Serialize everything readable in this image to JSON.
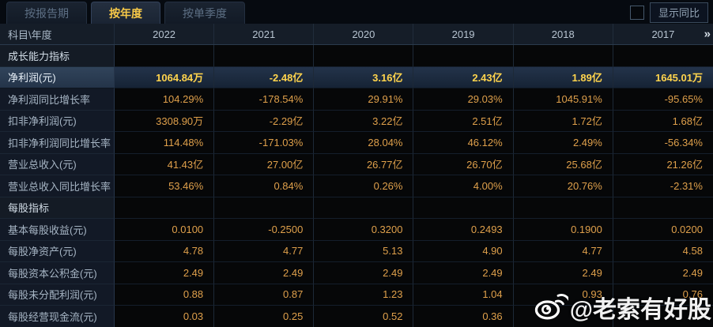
{
  "tabs": [
    {
      "label": "按报告期",
      "active": false
    },
    {
      "label": "按年度",
      "active": true
    },
    {
      "label": "按单季度",
      "active": false
    }
  ],
  "controls": {
    "show_yoy_label": "显示同比",
    "checkbox_checked": false
  },
  "table": {
    "corner_header": "科目\\年度",
    "years": [
      "2022",
      "2021",
      "2020",
      "2019",
      "2018",
      "2017"
    ],
    "more_icon": "»",
    "rows": [
      {
        "type": "section",
        "label": "成长能力指标",
        "values": [
          "",
          "",
          "",
          "",
          "",
          ""
        ]
      },
      {
        "type": "highlight",
        "label": "净利润(元)",
        "values": [
          "1064.84万",
          "-2.48亿",
          "3.16亿",
          "2.43亿",
          "1.89亿",
          "1645.01万"
        ]
      },
      {
        "type": "data",
        "label": "净利润同比增长率",
        "values": [
          "104.29%",
          "-178.54%",
          "29.91%",
          "29.03%",
          "1045.91%",
          "-95.65%"
        ]
      },
      {
        "type": "data",
        "label": "扣非净利润(元)",
        "values": [
          "3308.90万",
          "-2.29亿",
          "3.22亿",
          "2.51亿",
          "1.72亿",
          "1.68亿"
        ]
      },
      {
        "type": "data",
        "label": "扣非净利润同比增长率",
        "values": [
          "114.48%",
          "-171.03%",
          "28.04%",
          "46.12%",
          "2.49%",
          "-56.34%"
        ]
      },
      {
        "type": "data",
        "label": "营业总收入(元)",
        "values": [
          "41.43亿",
          "27.00亿",
          "26.77亿",
          "26.70亿",
          "25.68亿",
          "21.26亿"
        ]
      },
      {
        "type": "data",
        "label": "营业总收入同比增长率",
        "values": [
          "53.46%",
          "0.84%",
          "0.26%",
          "4.00%",
          "20.76%",
          "-2.31%"
        ]
      },
      {
        "type": "section",
        "label": "每股指标",
        "values": [
          "",
          "",
          "",
          "",
          "",
          ""
        ]
      },
      {
        "type": "data",
        "label": "基本每股收益(元)",
        "values": [
          "0.0100",
          "-0.2500",
          "0.3200",
          "0.2493",
          "0.1900",
          "0.0200"
        ]
      },
      {
        "type": "data",
        "label": "每股净资产(元)",
        "values": [
          "4.78",
          "4.77",
          "5.13",
          "4.90",
          "4.77",
          "4.58"
        ]
      },
      {
        "type": "data",
        "label": "每股资本公积金(元)",
        "values": [
          "2.49",
          "2.49",
          "2.49",
          "2.49",
          "2.49",
          "2.49"
        ]
      },
      {
        "type": "data",
        "label": "每股未分配利润(元)",
        "values": [
          "0.88",
          "0.87",
          "1.23",
          "1.04",
          "0.93",
          "0.76"
        ]
      },
      {
        "type": "data",
        "label": "每股经营现金流(元)",
        "values": [
          "0.03",
          "0.25",
          "0.52",
          "0.36",
          "",
          ""
        ]
      }
    ]
  },
  "watermark": {
    "text": "@老索有好股",
    "icon": "weibo-icon"
  },
  "colors": {
    "accent_yellow": "#f7c948",
    "value_orange": "#dfa04b",
    "highlight_value_yellow": "#ffd44d",
    "header_bg": "#151d28",
    "label_col_bg": "#121926",
    "highlight_row_bg": "#1a2739"
  }
}
